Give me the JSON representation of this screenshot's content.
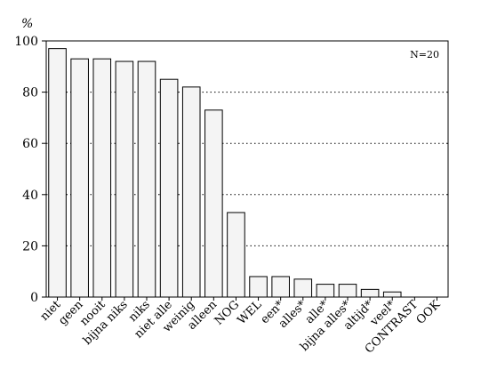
{
  "chart_data": {
    "type": "bar",
    "categories": [
      "niet",
      "geen",
      "nooit",
      "bijna niks",
      "niks",
      "niet alle",
      "weinig",
      "alleen",
      "NOG",
      "WEL",
      "een*",
      "alles*",
      "alle*",
      "bijna alles*",
      "altijd*",
      "veel*",
      "CONTRAST",
      "OOK"
    ],
    "values": [
      97,
      93,
      93,
      92,
      92,
      85,
      82,
      73,
      33,
      8,
      8,
      7,
      5,
      5,
      3,
      2,
      0,
      0
    ],
    "ylabel": "%",
    "ylim": [
      0,
      100
    ],
    "yticks": [
      0,
      20,
      40,
      60,
      80,
      100
    ],
    "grid": "horizontal dotted, x = 20..100",
    "annotation": "N=20",
    "annotation_position": "top-right",
    "bar_color": "#f4f4f4",
    "edge_color": "#000000"
  }
}
